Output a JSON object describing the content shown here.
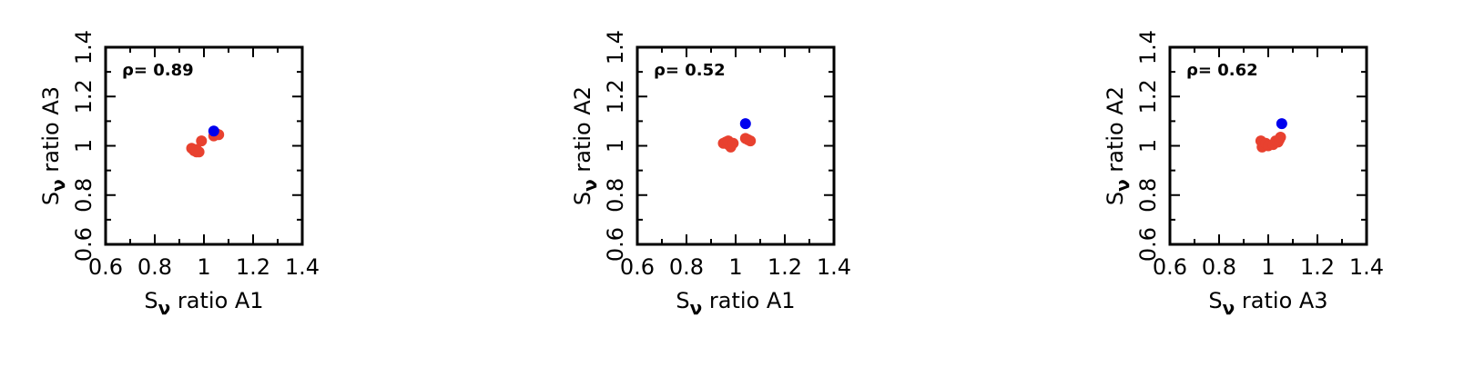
{
  "colors": {
    "frame": "#000000",
    "series_red": "#e8412f",
    "series_blue": "#0000ee"
  },
  "chart_data": [
    {
      "type": "scatter",
      "xlabel": {
        "symbol": "S",
        "sub": "ν",
        "text": " ratio A1"
      },
      "ylabel": {
        "symbol": "S",
        "sub": "ν",
        "text": " ratio A3"
      },
      "xlim": [
        0.6,
        1.4
      ],
      "ylim": [
        0.6,
        1.4
      ],
      "xticks": [
        "0.6",
        "0.8",
        "1",
        "1.2",
        "1.4"
      ],
      "yticks": [
        "0.6",
        "0.8",
        "1",
        "1.2",
        "1.4"
      ],
      "annotation": "ρ= 0.89",
      "series": [
        {
          "color": "#e8412f",
          "points": [
            [
              0.95,
              0.99
            ],
            [
              0.96,
              0.98
            ],
            [
              0.97,
              0.975
            ],
            [
              0.97,
              0.985
            ],
            [
              0.98,
              0.975
            ],
            [
              0.99,
              1.02
            ],
            [
              1.04,
              1.04
            ],
            [
              1.05,
              1.05
            ],
            [
              1.06,
              1.045
            ]
          ]
        },
        {
          "color": "#0000ee",
          "points": [
            [
              1.04,
              1.06
            ]
          ]
        }
      ]
    },
    {
      "type": "scatter",
      "xlabel": {
        "symbol": "S",
        "sub": "ν",
        "text": " ratio A1"
      },
      "ylabel": {
        "symbol": "S",
        "sub": "ν",
        "text": " ratio A2"
      },
      "xlim": [
        0.6,
        1.4
      ],
      "ylim": [
        0.6,
        1.4
      ],
      "xticks": [
        "0.6",
        "0.8",
        "1",
        "1.2",
        "1.4"
      ],
      "yticks": [
        "0.6",
        "0.8",
        "1",
        "1.2",
        "1.4"
      ],
      "annotation": "ρ= 0.52",
      "series": [
        {
          "color": "#e8412f",
          "points": [
            [
              0.95,
              1.01
            ],
            [
              0.96,
              1.015
            ],
            [
              0.97,
              1.005
            ],
            [
              0.97,
              1.02
            ],
            [
              0.98,
              0.995
            ],
            [
              0.99,
              1.01
            ],
            [
              1.04,
              1.03
            ],
            [
              1.05,
              1.025
            ],
            [
              1.06,
              1.02
            ]
          ]
        },
        {
          "color": "#0000ee",
          "points": [
            [
              1.04,
              1.09
            ]
          ]
        }
      ]
    },
    {
      "type": "scatter",
      "xlabel": {
        "symbol": "S",
        "sub": "ν",
        "text": " ratio A3"
      },
      "ylabel": {
        "symbol": "S",
        "sub": "ν",
        "text": " ratio A2"
      },
      "xlim": [
        0.6,
        1.4
      ],
      "ylim": [
        0.6,
        1.4
      ],
      "xticks": [
        "0.6",
        "0.8",
        "1",
        "1.2",
        "1.4"
      ],
      "yticks": [
        "0.6",
        "0.8",
        "1",
        "1.2",
        "1.4"
      ],
      "annotation": "ρ= 0.62",
      "series": [
        {
          "color": "#e8412f",
          "points": [
            [
              0.97,
              1.02
            ],
            [
              0.975,
              0.995
            ],
            [
              0.99,
              1.01
            ],
            [
              1.0,
              1.0
            ],
            [
              1.02,
              1.005
            ],
            [
              1.03,
              1.02
            ],
            [
              1.04,
              1.015
            ],
            [
              1.045,
              1.025
            ],
            [
              1.05,
              1.035
            ]
          ]
        },
        {
          "color": "#0000ee",
          "points": [
            [
              1.055,
              1.09
            ]
          ]
        }
      ]
    }
  ]
}
